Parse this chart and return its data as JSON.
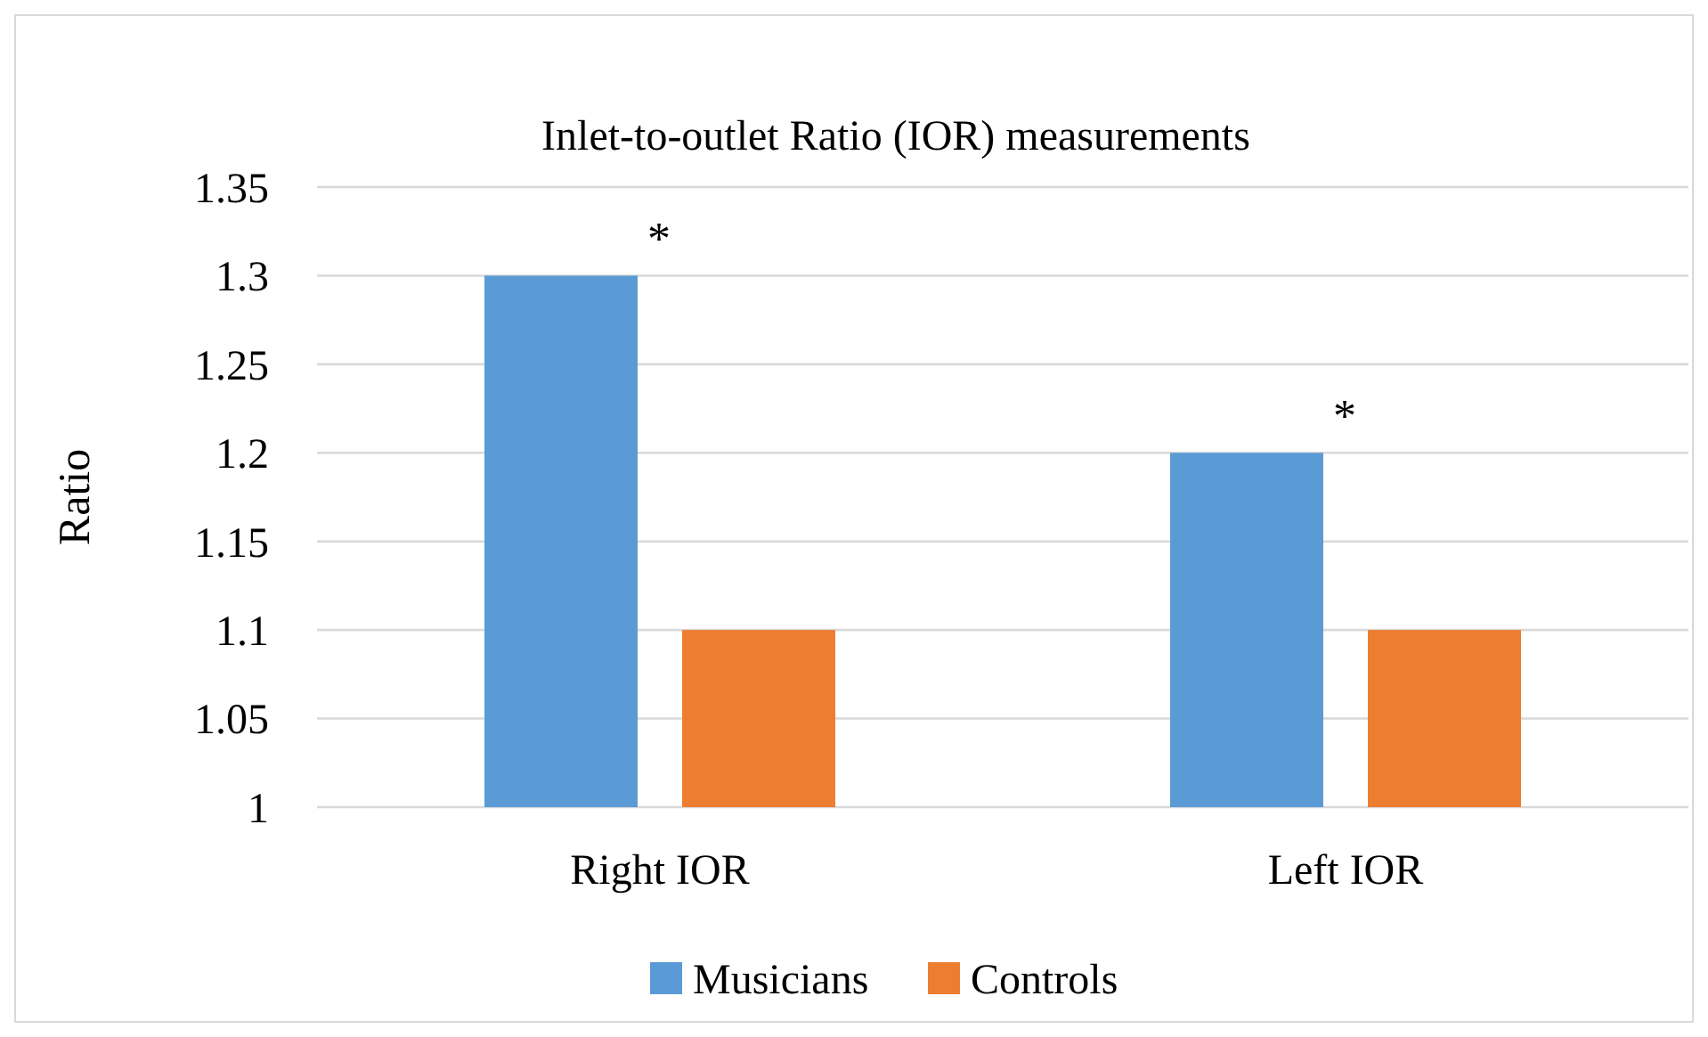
{
  "chart_data": {
    "type": "bar",
    "title": "Inlet-to-outlet Ratio (IOR) measurements",
    "ylabel": "Ratio",
    "categories": [
      "Right IOR",
      "Left IOR"
    ],
    "series": [
      {
        "name": "Musicians",
        "color": "#5b9bd5",
        "values": [
          1.3,
          1.2
        ]
      },
      {
        "name": "Controls",
        "color": "#ed7d31",
        "values": [
          1.1,
          1.1
        ]
      }
    ],
    "ylim": [
      1,
      1.35
    ],
    "yticks": [
      1,
      1.05,
      1.1,
      1.15,
      1.2,
      1.25,
      1.3,
      1.35
    ],
    "grid": "y",
    "legend": "bottom",
    "annotations": [
      "*",
      "*"
    ]
  }
}
